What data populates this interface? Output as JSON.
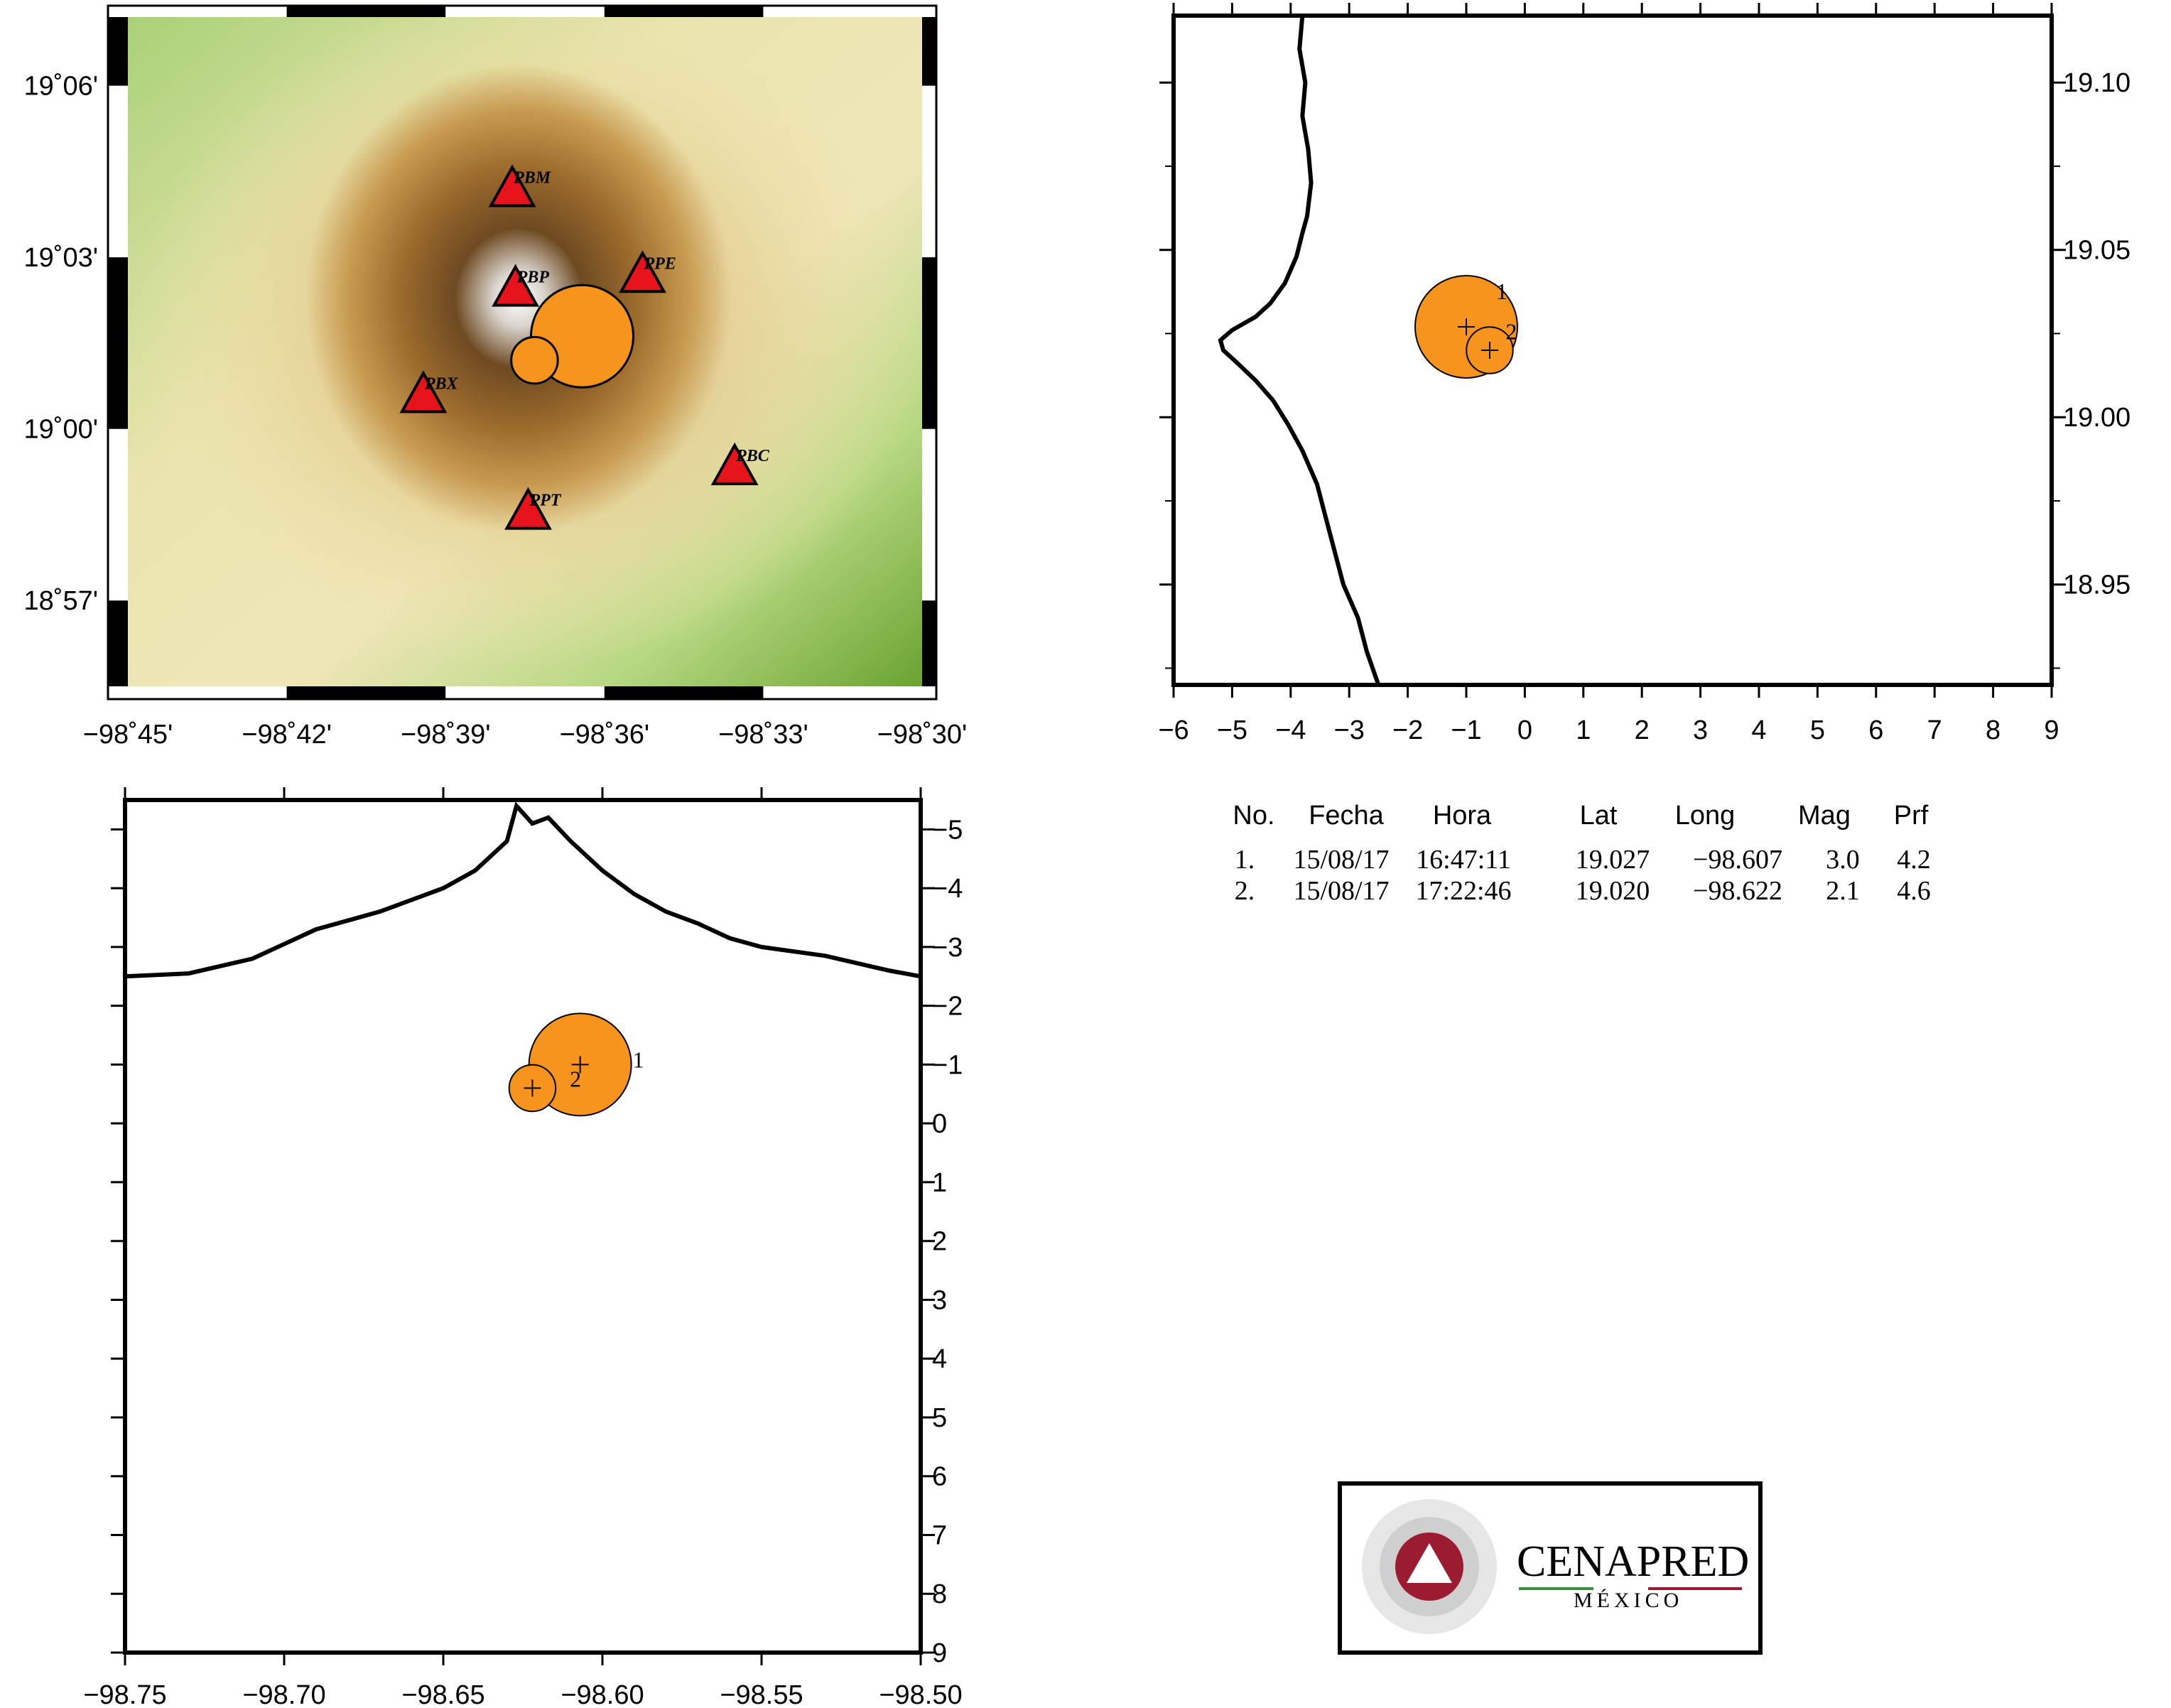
{
  "chart_data": [
    {
      "type": "scatter",
      "panel": "map",
      "x_ticks": [
        "−98˚45'",
        "−98˚42'",
        "−98˚39'",
        "−98˚36'",
        "−98˚33'",
        "−98˚30'"
      ],
      "y_ticks": [
        "19˚06'",
        "19˚03'",
        "19˚00'",
        "18˚57'"
      ],
      "xlim": [
        -98.75,
        -98.5
      ],
      "ylim": [
        18.925,
        19.12
      ],
      "stations": [
        {
          "name": "PBM",
          "lon": -98.629,
          "lat": 19.07
        },
        {
          "name": "PBP",
          "lon": -98.628,
          "lat": 19.041
        },
        {
          "name": "PPE",
          "lon": -98.588,
          "lat": 19.045
        },
        {
          "name": "PBX",
          "lon": -98.657,
          "lat": 19.01
        },
        {
          "name": "PBC",
          "lon": -98.559,
          "lat": 18.989
        },
        {
          "name": "PPT",
          "lon": -98.624,
          "lat": 18.976
        }
      ],
      "events": [
        {
          "id": 1,
          "lon": -98.607,
          "lat": 19.027,
          "mag": 3.0
        },
        {
          "id": 2,
          "lon": -98.622,
          "lat": 19.02,
          "mag": 2.1
        }
      ]
    },
    {
      "type": "scatter",
      "panel": "lat-section",
      "x_ticks": [
        "−6",
        "−5",
        "−4",
        "−3",
        "−2",
        "−1",
        "0",
        "1",
        "2",
        "3",
        "4",
        "5",
        "6",
        "7",
        "8",
        "9"
      ],
      "y_ticks": [
        "19.10",
        "19.05",
        "19.00",
        "18.95"
      ],
      "xlim": [
        -6,
        9
      ],
      "ylim": [
        18.92,
        19.12
      ],
      "events": [
        {
          "id": 1,
          "depth": -1.0,
          "lat": 19.027,
          "mag": 3.0
        },
        {
          "id": 2,
          "depth": -0.6,
          "lat": 19.02,
          "mag": 2.1
        }
      ]
    },
    {
      "type": "scatter",
      "panel": "lon-section",
      "x_ticks": [
        "−98.75",
        "−98.70",
        "−98.65",
        "−98.60",
        "−98.55",
        "−98.50"
      ],
      "y_ticks": [
        "−5",
        "−4",
        "−3",
        "−2",
        "−1",
        "0",
        "1",
        "2",
        "3",
        "4",
        "5",
        "6",
        "7",
        "8",
        "9"
      ],
      "xlim": [
        -98.75,
        -98.5
      ],
      "ylim": [
        -5.5,
        9
      ],
      "events": [
        {
          "id": 1,
          "lon": -98.607,
          "depth": -1.0,
          "mag": 3.0
        },
        {
          "id": 2,
          "lon": -98.622,
          "depth": -0.6,
          "mag": 2.1
        }
      ]
    }
  ],
  "table": {
    "headers": [
      "No.",
      "Fecha",
      "Hora",
      "Lat",
      "Long",
      "Mag",
      "Prf"
    ],
    "rows": [
      [
        "1.",
        "15/08/17",
        "16:47:11",
        "19.027",
        "−98.607",
        "3.0",
        "4.2"
      ],
      [
        "2.",
        "15/08/17",
        "17:22:46",
        "19.020",
        "−98.622",
        "2.1",
        "4.6"
      ]
    ]
  },
  "logo": {
    "name": "CENAPRED",
    "sub": "MÉXICO"
  },
  "colors": {
    "event": "#f7941d",
    "station": "#e8141b",
    "logo_red": "#9b1b30",
    "logo_gray": "#8c8c8c",
    "logo_green": "#3a8f3a"
  }
}
